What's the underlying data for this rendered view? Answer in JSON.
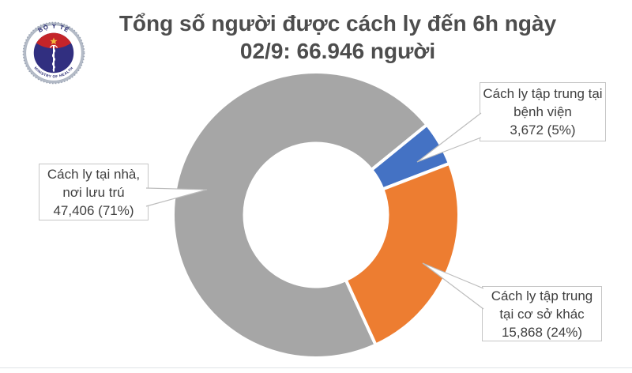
{
  "header": {
    "title_line1": "Tổng số người được cách ly đến 6h ngày",
    "title_line2": "02/9: 66.946 người"
  },
  "logo": {
    "top_text": "BỘ Y TẾ",
    "bottom_text": "MINISTRY OF HEALTH",
    "colors": {
      "ring_silver": "#b4bbc7",
      "band_white": "#ffffff",
      "inner_navy": "#312f80",
      "band_red": "#c42429",
      "star_gold": "#f2b63c",
      "text_navy": "#23266e"
    }
  },
  "chart_data": {
    "type": "pie",
    "subtype": "donut",
    "title": "Tổng số người được cách ly đến 6h ngày 02/9: 66.946 người",
    "total_value_label": "66.946 người",
    "start_angle_deg": 155.3,
    "hole_ratio": 0.5,
    "legend_position": "callout-labels",
    "slices": [
      {
        "label": "Cách ly tại nhà, nơi lưu trú",
        "value": 47406,
        "percent": 71,
        "color": "#a6a6a6"
      },
      {
        "label": "Cách ly tập trung tại bệnh viện",
        "value": 3672,
        "percent": 5,
        "color": "#4472c4"
      },
      {
        "label": "Cách ly tập trung tại cơ sở khác",
        "value": 15868,
        "percent": 24,
        "color": "#ed7d31"
      }
    ]
  },
  "callouts": {
    "home": {
      "lines": [
        "Cách ly tại nhà,",
        "nơi lưu trú",
        "47,406 (71%)"
      ]
    },
    "hospital": {
      "lines": [
        "Cách ly tập trung tại",
        "bệnh viện",
        "3,672 (5%)"
      ]
    },
    "other": {
      "lines": [
        "Cách ly tập trung",
        "tại cơ sở khác",
        "15,868 (24%)"
      ]
    }
  }
}
